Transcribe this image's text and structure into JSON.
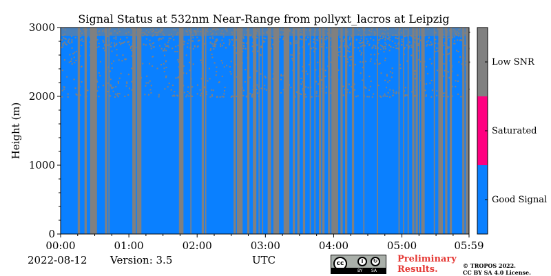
{
  "chart_data": {
    "type": "heatmap",
    "title": "Signal Status at 532nm Near-Range from pollyxt_lacros at Leipzig",
    "xlabel": "UTC",
    "ylabel": "Height (m)",
    "x_ticks": [
      "00:00",
      "01:00",
      "02:00",
      "03:00",
      "04:00",
      "05:00",
      "05:59"
    ],
    "x_range_minutes": [
      0,
      359
    ],
    "y_ticks": [
      0,
      1000,
      2000,
      3000
    ],
    "ylim": [
      0,
      3000
    ],
    "categories": [
      "Good Signal",
      "Saturated",
      "Low SNR"
    ],
    "category_colors": [
      "#0a80ff",
      "#ff0080",
      "#808080"
    ],
    "low_snr_full_column_intervals_minutes": [
      [
        15,
        17
      ],
      [
        21,
        23
      ],
      [
        26,
        32
      ],
      [
        39,
        41
      ],
      [
        42,
        43
      ],
      [
        63,
        66
      ],
      [
        67,
        71
      ],
      [
        104,
        108
      ],
      [
        114,
        115
      ],
      [
        124,
        126
      ],
      [
        127,
        128
      ],
      [
        152,
        154
      ],
      [
        155,
        160
      ],
      [
        164,
        166
      ],
      [
        169,
        172
      ],
      [
        174,
        175
      ],
      [
        177,
        178
      ],
      [
        182,
        185
      ],
      [
        187,
        192
      ],
      [
        196,
        201
      ],
      [
        204,
        206
      ],
      [
        208,
        210
      ],
      [
        213,
        215
      ],
      [
        219,
        220
      ],
      [
        223,
        224
      ],
      [
        227,
        229
      ],
      [
        230,
        232
      ],
      [
        235,
        237
      ],
      [
        238,
        244
      ],
      [
        246,
        248
      ],
      [
        250,
        252
      ],
      [
        256,
        258
      ],
      [
        266,
        267
      ],
      [
        278,
        279
      ],
      [
        297,
        298
      ],
      [
        301,
        302
      ],
      [
        305,
        306
      ],
      [
        309,
        311
      ],
      [
        312,
        314
      ],
      [
        315,
        316
      ],
      [
        317,
        320
      ],
      [
        328,
        329
      ],
      [
        332,
        336
      ],
      [
        338,
        340
      ],
      [
        342,
        344
      ],
      [
        353,
        355
      ],
      [
        356,
        359
      ]
    ],
    "low_snr_dominant_above_m": 2700,
    "low_snr_sparse_above_m": 2000
  },
  "footer": {
    "date": "2022-08-12",
    "version": "Version: 3.5",
    "utc": "UTC",
    "preliminary": "Preliminary Results.",
    "copyright_line1": "© TROPOS 2022.",
    "copyright_line2": "CC BY SA 4.0 License."
  },
  "license_badge": {
    "cc": "cc",
    "by": "BY",
    "sa": "SA",
    "icon_names": [
      "creative-commons-icon",
      "attribution-icon",
      "share-alike-icon"
    ]
  }
}
